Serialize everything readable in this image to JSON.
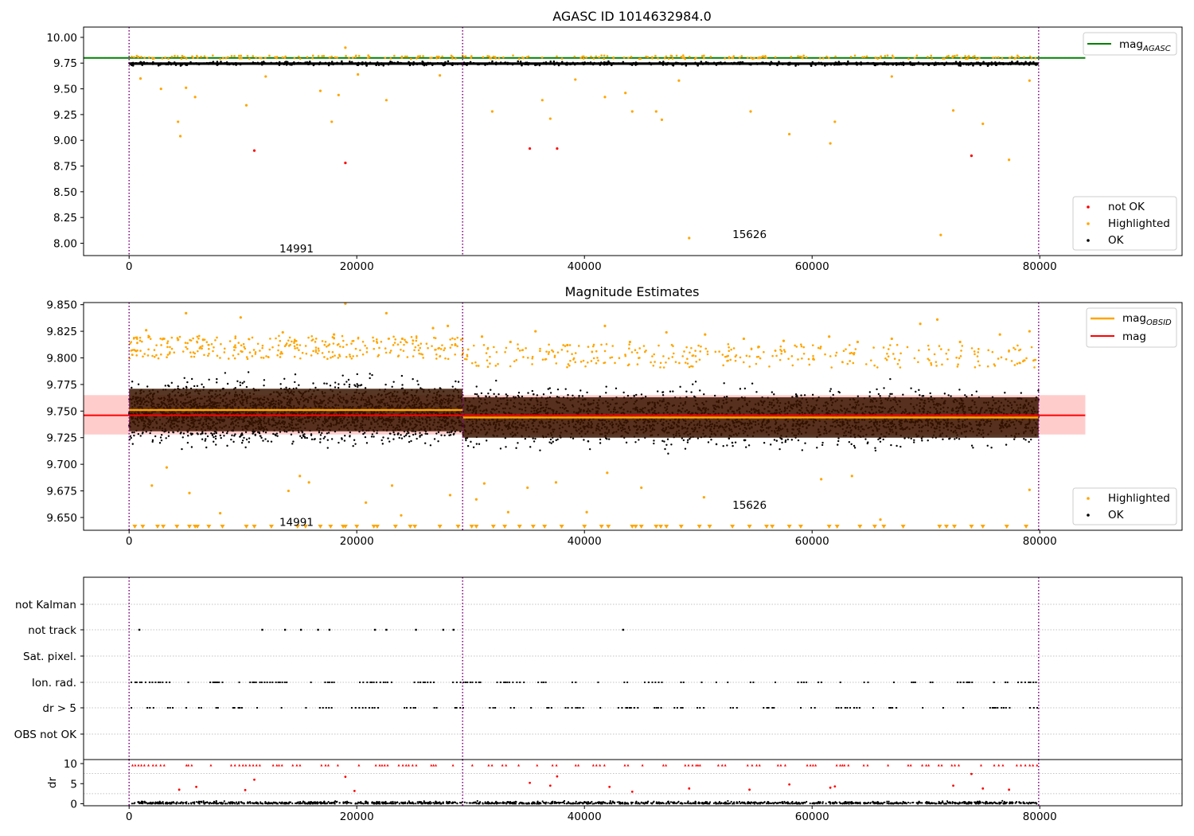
{
  "colors": {
    "ok": "#000000",
    "highlighted": "#ffa500",
    "not_ok": "#ff0000",
    "agasc_line": "#008000",
    "obsid_line": "#ffa500",
    "mag_line": "#ff0000",
    "mag_band": "#ffcccc",
    "obsid_band": "#3a1400",
    "obs_divider": "#800080"
  },
  "chart_data": [
    {
      "type": "scatter",
      "title": "AGASC ID 1014632984.0",
      "xlim": [
        -4000,
        92500
      ],
      "ylim": [
        7.88,
        10.1
      ],
      "xticks": [
        0,
        20000,
        40000,
        60000,
        80000
      ],
      "yticks": [
        8.0,
        8.25,
        8.5,
        8.75,
        9.0,
        9.25,
        9.5,
        9.75,
        10.0
      ],
      "ytick_labels": [
        "8.00",
        "8.25",
        "8.50",
        "8.75",
        "9.00",
        "9.25",
        "9.50",
        "9.75",
        "10.00"
      ],
      "obs_boundaries": [
        0,
        29300,
        79900
      ],
      "obsid_labels": [
        {
          "text": "14991",
          "x": 13200,
          "y": 7.95
        },
        {
          "text": "15626",
          "x": 53000,
          "y": 8.09
        }
      ],
      "mag_agasc": 9.8,
      "ok_band": {
        "x_range": [
          0,
          79900
        ],
        "center": 9.745,
        "spread": 0.035
      },
      "not_ok_points": [
        [
          11000,
          8.9
        ],
        [
          19000,
          8.78
        ],
        [
          35200,
          8.92
        ],
        [
          37600,
          8.92
        ],
        [
          74000,
          8.85
        ]
      ],
      "highlighted_points": [
        [
          4300,
          9.18
        ],
        [
          4500,
          9.04
        ],
        [
          5000,
          9.51
        ],
        [
          5800,
          9.42
        ],
        [
          10300,
          9.34
        ],
        [
          16800,
          9.48
        ],
        [
          17800,
          9.18
        ],
        [
          18400,
          9.44
        ],
        [
          19000,
          9.9
        ],
        [
          22600,
          9.39
        ],
        [
          31900,
          9.28
        ],
        [
          36300,
          9.39
        ],
        [
          37000,
          9.21
        ],
        [
          39200,
          9.59
        ],
        [
          41800,
          9.42
        ],
        [
          43600,
          9.46
        ],
        [
          44200,
          9.28
        ],
        [
          46300,
          9.28
        ],
        [
          46800,
          9.2
        ],
        [
          49200,
          8.05
        ],
        [
          54600,
          9.28
        ],
        [
          58000,
          9.06
        ],
        [
          61600,
          8.97
        ],
        [
          62000,
          9.18
        ],
        [
          71300,
          8.08
        ],
        [
          72400,
          9.29
        ],
        [
          75000,
          9.16
        ],
        [
          77300,
          8.81
        ],
        [
          1000,
          9.6
        ],
        [
          2800,
          9.5
        ],
        [
          12000,
          9.62
        ],
        [
          20100,
          9.64
        ],
        [
          27300,
          9.63
        ],
        [
          48300,
          9.58
        ],
        [
          67000,
          9.62
        ],
        [
          79100,
          9.58
        ]
      ],
      "legend": [
        {
          "label": "mag",
          "subscript": "AGASC",
          "kind": "line",
          "color_key": "agasc_line"
        }
      ],
      "legend2": [
        {
          "label": "not OK",
          "kind": "dot",
          "color_key": "not_ok"
        },
        {
          "label": "Highlighted",
          "kind": "dot",
          "color_key": "highlighted"
        },
        {
          "label": "OK",
          "kind": "dot",
          "color_key": "ok"
        }
      ]
    },
    {
      "type": "scatter",
      "title": "Magnitude Estimates",
      "xlim": [
        -4000,
        92500
      ],
      "ylim": [
        9.638,
        9.852
      ],
      "xticks": [
        0,
        20000,
        40000,
        60000,
        80000
      ],
      "yticks": [
        9.65,
        9.675,
        9.7,
        9.725,
        9.75,
        9.775,
        9.8,
        9.825,
        9.85
      ],
      "ytick_labels": [
        "9.650",
        "9.675",
        "9.700",
        "9.725",
        "9.750",
        "9.775",
        "9.800",
        "9.825",
        "9.850"
      ],
      "obs_boundaries": [
        0,
        29300,
        79900
      ],
      "obsid_labels": [
        {
          "text": "14991",
          "x": 13200,
          "y": 9.646
        },
        {
          "text": "15626",
          "x": 53000,
          "y": 9.662
        }
      ],
      "mag": {
        "value": 9.746,
        "band": [
          9.728,
          9.765
        ],
        "x_range": [
          -4000,
          84000
        ]
      },
      "mag_obsid": [
        {
          "x_range": [
            0,
            29300
          ],
          "value": 9.751,
          "band": [
            9.731,
            9.771
          ]
        },
        {
          "x_range": [
            29300,
            79900
          ],
          "value": 9.744,
          "band": [
            9.725,
            9.763
          ]
        }
      ],
      "ok_band": [
        {
          "x_range": [
            0,
            29300
          ],
          "center": 9.749,
          "spread": 0.05
        },
        {
          "x_range": [
            29300,
            79900
          ],
          "center": 9.744,
          "spread": 0.047
        }
      ],
      "highlighted_points": [
        [
          19000,
          9.851
        ],
        [
          22600,
          9.842
        ],
        [
          5000,
          9.842
        ],
        [
          9800,
          9.838
        ],
        [
          41800,
          9.83
        ],
        [
          71000,
          9.836
        ],
        [
          69500,
          9.832
        ],
        [
          35700,
          9.825
        ],
        [
          47200,
          9.824
        ],
        [
          79100,
          9.825
        ],
        [
          26700,
          9.828
        ],
        [
          1500,
          9.826
        ],
        [
          3000,
          9.818
        ],
        [
          6500,
          9.817
        ],
        [
          13500,
          9.824
        ],
        [
          18000,
          9.822
        ],
        [
          24000,
          9.818
        ],
        [
          28000,
          9.83
        ],
        [
          31000,
          9.82
        ],
        [
          33500,
          9.815
        ],
        [
          38500,
          9.812
        ],
        [
          44000,
          9.815
        ],
        [
          50600,
          9.822
        ],
        [
          54000,
          9.818
        ],
        [
          57500,
          9.816
        ],
        [
          61500,
          9.82
        ],
        [
          64000,
          9.815
        ],
        [
          67000,
          9.818
        ],
        [
          73000,
          9.815
        ],
        [
          76500,
          9.822
        ],
        [
          2000,
          9.68
        ],
        [
          3300,
          9.697
        ],
        [
          5300,
          9.673
        ],
        [
          8000,
          9.654
        ],
        [
          14000,
          9.675
        ],
        [
          15000,
          9.689
        ],
        [
          15800,
          9.683
        ],
        [
          20800,
          9.664
        ],
        [
          23100,
          9.68
        ],
        [
          23900,
          9.652
        ],
        [
          28200,
          9.671
        ],
        [
          30500,
          9.667
        ],
        [
          31200,
          9.682
        ],
        [
          33300,
          9.655
        ],
        [
          35000,
          9.678
        ],
        [
          37500,
          9.683
        ],
        [
          40200,
          9.655
        ],
        [
          42000,
          9.692
        ],
        [
          45000,
          9.678
        ],
        [
          50500,
          9.669
        ],
        [
          54500,
          9.642
        ],
        [
          60800,
          9.686
        ],
        [
          63500,
          9.689
        ],
        [
          66000,
          9.648
        ],
        [
          79100,
          9.676
        ]
      ],
      "censored_low_x": [
        500,
        1200,
        2500,
        3000,
        4200,
        5300,
        5800,
        6000,
        7000,
        8200,
        10300,
        11000,
        12500,
        14800,
        15500,
        16800,
        17700,
        18800,
        19000,
        20000,
        21500,
        21800,
        23400,
        24700,
        25100,
        27300,
        28900,
        30100,
        30500,
        32000,
        33000,
        34300,
        35500,
        36500,
        38000,
        40000,
        41500,
        42100,
        44200,
        44500,
        45000,
        46300,
        46700,
        47200,
        48500,
        50100,
        51000,
        53000,
        54500,
        56000,
        56500,
        58000,
        59000,
        61500,
        62200,
        64200,
        65500,
        66300,
        68000,
        71200,
        71800,
        72500,
        74000,
        75000,
        77100,
        78800
      ],
      "legend": [
        {
          "label": "mag",
          "subscript": "OBSID",
          "kind": "line",
          "color_key": "obsid_line"
        },
        {
          "label": "mag",
          "subscript": "",
          "kind": "line",
          "color_key": "mag_line"
        }
      ],
      "legend2": [
        {
          "label": "Highlighted",
          "kind": "dot",
          "color_key": "highlighted"
        },
        {
          "label": "OK",
          "kind": "dot",
          "color_key": "ok"
        }
      ]
    },
    {
      "type": "scatter",
      "title": "",
      "xlim": [
        -4000,
        92500
      ],
      "xticks": [
        0,
        20000,
        40000,
        60000,
        80000
      ],
      "obs_boundaries": [
        0,
        29300,
        79900
      ],
      "flag_rows": [
        "not Kalman",
        "not track",
        "Sat. pixel.",
        "Ion. rad.",
        "dr > 5",
        "OBS not OK"
      ],
      "flag_points": {
        "not Kalman": [],
        "not track": [
          900,
          11700,
          13700,
          15100,
          16600,
          17600,
          21600,
          22600,
          25200,
          27600,
          28500,
          43400
        ],
        "Sat. pixel.": [],
        "Ion. rad.": "dense",
        "dr > 5": "dense",
        "OBS not OK": []
      },
      "dr_ylim": [
        -0.5,
        11
      ],
      "dr_yticks": [
        0,
        5,
        10
      ],
      "dr_outliers_red": [
        [
          4400,
          3.5
        ],
        [
          5900,
          4.2
        ],
        [
          10200,
          3.4
        ],
        [
          11000,
          6.0
        ],
        [
          19000,
          6.7
        ],
        [
          19800,
          3.2
        ],
        [
          35200,
          5.2
        ],
        [
          37000,
          4.5
        ],
        [
          37600,
          6.8
        ],
        [
          42200,
          4.2
        ],
        [
          44200,
          3.0
        ],
        [
          49200,
          3.8
        ],
        [
          54500,
          3.5
        ],
        [
          58000,
          4.8
        ],
        [
          61600,
          4.0
        ],
        [
          62000,
          4.3
        ],
        [
          72400,
          4.5
        ],
        [
          74000,
          7.4
        ],
        [
          75000,
          3.8
        ],
        [
          77300,
          3.5
        ]
      ]
    }
  ]
}
